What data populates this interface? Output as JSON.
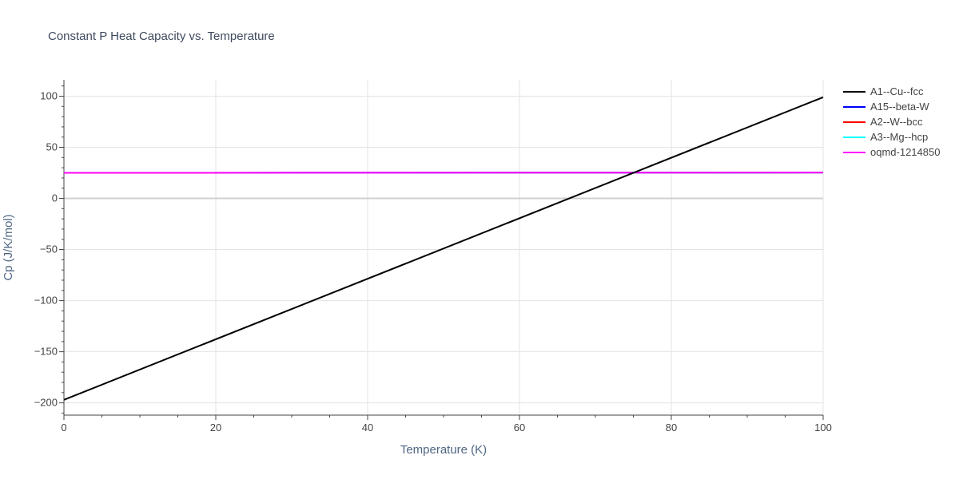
{
  "chart_data": {
    "type": "line",
    "title": "Constant P Heat Capacity vs. Temperature",
    "xlabel": "Temperature (K)",
    "ylabel": "Cp (J/K/mol)",
    "xlim": [
      0,
      100
    ],
    "ylim": [
      -212,
      116
    ],
    "xticks": [
      0,
      20,
      40,
      60,
      80,
      100
    ],
    "yticks": [
      -200,
      -150,
      -100,
      -50,
      0,
      50,
      100
    ],
    "xtick_labels": [
      "0",
      "20",
      "40",
      "60",
      "80",
      "100"
    ],
    "ytick_labels": [
      "−200",
      "−150",
      "−100",
      "−50",
      "0",
      "50",
      "100"
    ],
    "grid": true,
    "legend_position": "right",
    "series": [
      {
        "name": "A1--Cu--fcc",
        "color": "#000000",
        "x": [
          0,
          100
        ],
        "y": [
          -197,
          99
        ]
      },
      {
        "name": "A15--beta-W",
        "color": "#0000ff",
        "x": [
          0,
          100
        ],
        "y": [
          25,
          25.3
        ]
      },
      {
        "name": "A2--W--bcc",
        "color": "#ff0000",
        "x": [
          0,
          100
        ],
        "y": [
          25,
          25.3
        ]
      },
      {
        "name": "A3--Mg--hcp",
        "color": "#00ffff",
        "x": [
          0,
          100
        ],
        "y": [
          25,
          25.3
        ]
      },
      {
        "name": "oqmd-1214850",
        "color": "#ff00ff",
        "x": [
          0,
          100
        ],
        "y": [
          25,
          25.3
        ]
      }
    ]
  }
}
